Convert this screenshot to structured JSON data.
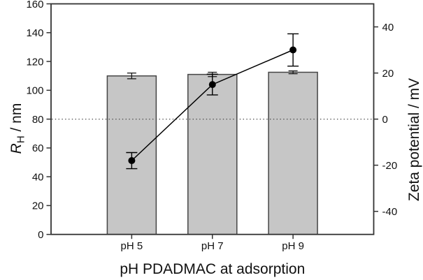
{
  "figure": {
    "kind": "scientific-plot",
    "background": "#ffffff"
  },
  "chart_data": {
    "type": "bar",
    "subtype": "dual-axis bar chart with overlaid line-scatter series, both with error bars",
    "categories": [
      "pH 5",
      "pH 7",
      "pH 9"
    ],
    "series": [
      {
        "name": "RH / nm",
        "plot": "bar",
        "axis": "left",
        "values": [
          110,
          111,
          112.5
        ],
        "errors": [
          2,
          1.5,
          1
        ]
      },
      {
        "name": "Zeta potential / mV",
        "plot": "line-scatter",
        "axis": "right",
        "values": [
          -18,
          15,
          30
        ],
        "errors": [
          3.5,
          4.5,
          7
        ],
        "marker": "filled-circle"
      }
    ],
    "x_axis": {
      "label": "pH PDADMAC at adsorption"
    },
    "left_axis": {
      "label": "RH / nm",
      "label_parts": {
        "main": "R",
        "sub": "H",
        "rest": " / nm"
      },
      "min": 0,
      "max": 160,
      "ticks": [
        0,
        20,
        40,
        60,
        80,
        100,
        120,
        140,
        160
      ]
    },
    "right_axis": {
      "label": "Zeta potential / mV",
      "min": -50,
      "max": 50,
      "ticks": [
        -40,
        -20,
        0,
        20,
        40
      ]
    },
    "reference_line": {
      "left_axis_value": 80,
      "right_axis_value": 0,
      "style": "dotted"
    },
    "grid": false,
    "legend": false
  },
  "colors": {
    "axis": "#333333",
    "text": "#111111",
    "bar_fill": "#c6c6c6",
    "bar_stroke": "#454545",
    "series_line": "#000000",
    "error_bar": "#1a1a1a",
    "reference_line": "#4a4a4a"
  }
}
